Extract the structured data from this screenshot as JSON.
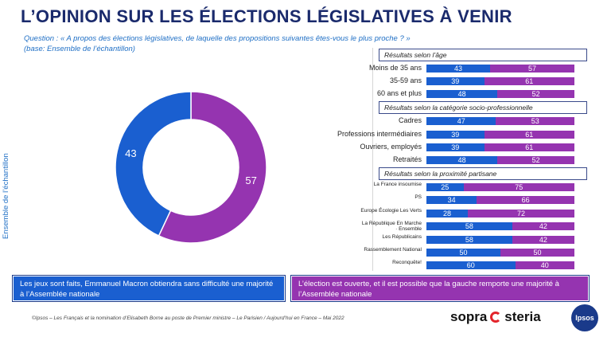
{
  "title": "L’OPINION SUR LES ÉLECTIONS LÉGISLATIVES À VENIR",
  "question_line1": "Question : « A propos des élections législatives, de laquelle des propositions suivantes êtes-vous le plus proche ? »",
  "question_line2": "(base: Ensemble de l’échantillon)",
  "side_label": "Ensemble de l’échantillon",
  "colors": {
    "blue": "#1a5fd0",
    "purple": "#9534b0"
  },
  "chart_data": [
    {
      "type": "pie",
      "title": "",
      "labels": [
        "Les jeux sont faits",
        "L’élection est ouverte"
      ],
      "values": [
        43,
        57
      ]
    },
    {
      "type": "bar",
      "title": "Résultats selon l’âge",
      "categories": [
        "Moins de 35 ans",
        "35-59 ans",
        "60 ans et plus"
      ],
      "series": [
        {
          "values": [
            43,
            39,
            48
          ]
        },
        {
          "values": [
            57,
            61,
            52
          ]
        }
      ]
    },
    {
      "type": "bar",
      "title": "Résultats selon la catégorie socio-professionnelle",
      "categories": [
        "Cadres",
        "Professions intermédiaires",
        "Ouvriers, employés",
        "Retraités"
      ],
      "series": [
        {
          "values": [
            47,
            39,
            39,
            48
          ]
        },
        {
          "values": [
            53,
            61,
            61,
            52
          ]
        }
      ]
    },
    {
      "type": "bar",
      "title": "Résultats selon la proximité partisane",
      "categories": [
        "La France insoumise",
        "PS",
        "Europe Écologie Les Verts",
        "La République En Marche / Ensemble",
        "Les Républicains",
        "Rassemblement National",
        "Reconquête!"
      ],
      "series": [
        {
          "values": [
            25,
            34,
            28,
            58,
            58,
            50,
            60
          ]
        },
        {
          "values": [
            75,
            66,
            72,
            42,
            42,
            50,
            40
          ]
        }
      ]
    }
  ],
  "sections": {
    "age": {
      "header": "Résultats selon l’âge",
      "rows": [
        {
          "label": "Moins de 35 ans",
          "a": 43,
          "b": 57
        },
        {
          "label": "35-59 ans",
          "a": 39,
          "b": 61
        },
        {
          "label": "60 ans et plus",
          "a": 48,
          "b": 52
        }
      ]
    },
    "csp": {
      "header": "Résultats selon la catégorie socio-professionnelle",
      "rows": [
        {
          "label": "Cadres",
          "a": 47,
          "b": 53
        },
        {
          "label": "Professions intermédiaires",
          "a": 39,
          "b": 61
        },
        {
          "label": "Ouvriers, employés",
          "a": 39,
          "b": 61
        },
        {
          "label": "Retraités",
          "a": 48,
          "b": 52
        }
      ]
    },
    "party": {
      "header": "Résultats selon la proximité partisane",
      "rows": [
        {
          "label": "La France insoumise",
          "a": 25,
          "b": 75
        },
        {
          "label": "PS",
          "a": 34,
          "b": 66
        },
        {
          "label": "Europe Écologie Les Verts",
          "a": 28,
          "b": 72
        },
        {
          "label": "La République En Marche · Ensemble",
          "a": 58,
          "b": 42
        },
        {
          "label": "Les Républicains",
          "a": 58,
          "b": 42
        },
        {
          "label": "Rassemblement National",
          "a": 50,
          "b": 50
        },
        {
          "label": "Reconquête!",
          "a": 60,
          "b": 40
        }
      ]
    }
  },
  "box_left": "Les jeux sont faits, Emmanuel Macron obtiendra sans difficulté une majorité à l’Assemblée nationale",
  "box_right": "L’élection est ouverte, et il est possible que la gauche remporte une majorité à l’Assemblée nationale",
  "footer": "©Ipsos – Les Français et la nomination d’Elisabeth Borne au poste de Premier ministre – Le Parisien / Aujourd’hui en France – Mai 2022",
  "brand_sopra": "sopra",
  "brand_steria": "steria",
  "brand_ipsos": "Ipsos"
}
